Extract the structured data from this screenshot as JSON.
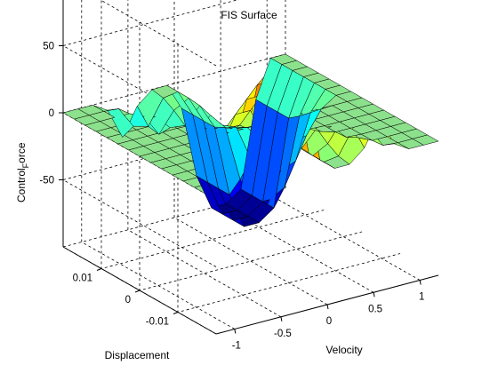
{
  "window": {
    "title": "FIS Surface"
  },
  "chart_data": {
    "type": "surface",
    "title": "FIS Surface",
    "xlabel": "Velocity",
    "ylabel": "Displacement",
    "zlabel": "Control_Force",
    "zlabel_main": "Control",
    "zlabel_sub": "F",
    "zlabel_rest": "orce",
    "xlim": [
      -1.2,
      1.2
    ],
    "ylim": [
      -0.02,
      0.02
    ],
    "zlim": [
      -100,
      100
    ],
    "xticks": [
      -1,
      -0.5,
      0,
      0.5,
      1
    ],
    "xtick_labels": [
      "-1",
      "-0.5",
      "0",
      "0.5",
      "1"
    ],
    "yticks": [
      -0.01,
      0,
      0.01
    ],
    "ytick_labels": [
      "-0.01",
      "0",
      "0.01"
    ],
    "zticks": [
      -50,
      0,
      50
    ],
    "ztick_labels": [
      "-50",
      "0",
      "50"
    ],
    "grid": true,
    "colormap": "jet",
    "description_values": {
      "x_grid": [
        -1.2,
        -1.04,
        -0.88,
        -0.72,
        -0.56,
        -0.4,
        -0.24,
        -0.08,
        0.08,
        0.24,
        0.4,
        0.56,
        0.72,
        0.88,
        1.04,
        1.2
      ],
      "y_grid": [
        -0.02,
        -0.0171,
        -0.0143,
        -0.0114,
        -0.0086,
        -0.0057,
        -0.0029,
        0,
        0.0029,
        0.0057,
        0.0086,
        0.0114,
        0.0143,
        0.0171,
        0.02
      ],
      "plateau_value": 0,
      "ridge_peak": 90,
      "trough_min": -100
    }
  }
}
